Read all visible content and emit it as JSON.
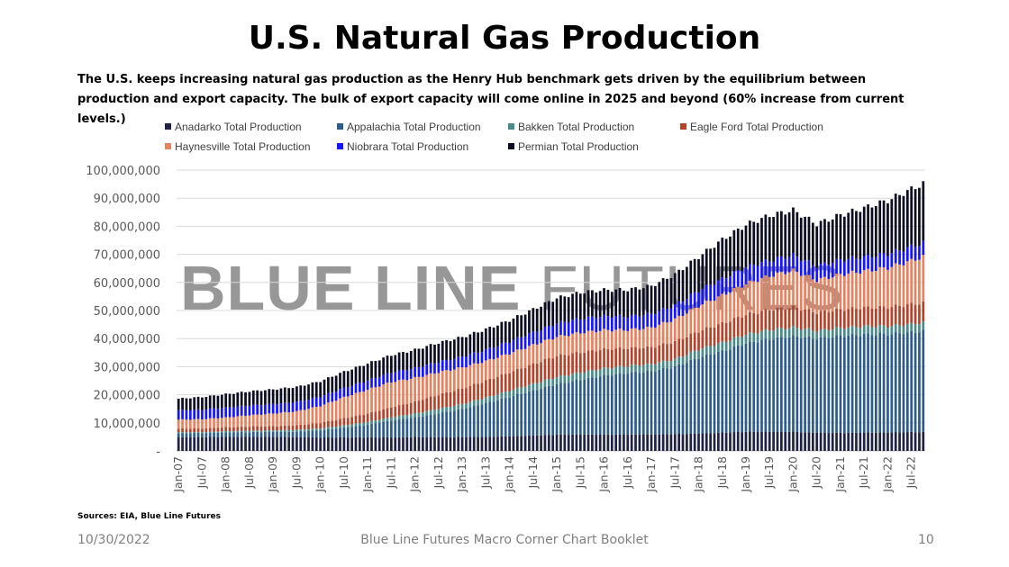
{
  "title": "U.S. Natural Gas Production",
  "subtitle": "The U.S. keeps increasing natural gas production as the Henry Hub benchmark gets driven by the equilibrium between production and export capacity. The bulk of export capacity will come online in 2025 and  beyond (60% increase from current levels.)",
  "sources": "Sources: EIA, Blue Line Futures",
  "footer": {
    "date": "10/30/2022",
    "center": "Blue Line Futures Macro Corner Chart Booklet",
    "page": "10"
  },
  "watermark": {
    "bold": "BLUE LINE",
    "light": "FUTURES"
  },
  "chart_data": {
    "type": "bar",
    "stacked": true,
    "title": "",
    "xlabel": "",
    "ylabel": "",
    "ylim": [
      0,
      100000000
    ],
    "yticks": [
      "-",
      "10,000,000",
      "20,000,000",
      "30,000,000",
      "40,000,000",
      "50,000,000",
      "60,000,000",
      "70,000,000",
      "80,000,000",
      "90,000,000",
      "100,000,000"
    ],
    "grid": true,
    "legend_position": "top",
    "x_start": "Jan-07",
    "x_end": "Oct-22",
    "frequency": "monthly",
    "anchor_note": "values in millions at Jan/Jul of each year plus Oct-22; monthly bars interpolated",
    "anchors": [
      "Jan-07",
      "Jul-07",
      "Jan-08",
      "Jul-08",
      "Jan-09",
      "Jul-09",
      "Jan-10",
      "Jul-10",
      "Jan-11",
      "Jul-11",
      "Jan-12",
      "Jul-12",
      "Jan-13",
      "Jul-13",
      "Jan-14",
      "Jul-14",
      "Jan-15",
      "Jul-15",
      "Jan-16",
      "Jul-16",
      "Jan-17",
      "Jul-17",
      "Jan-18",
      "Jul-18",
      "Jan-19",
      "Jul-19",
      "Jan-20",
      "Jul-20",
      "Jan-21",
      "Jul-21",
      "Jan-22",
      "Jul-22",
      "Oct-22"
    ],
    "xtick_labels": [
      "Jan-07",
      "Jul-07",
      "Jan-08",
      "Jul-08",
      "Jan-09",
      "Jul-09",
      "Jan-10",
      "Jul-10",
      "Jan-11",
      "Jul-11",
      "Jan-12",
      "Jul-12",
      "Jan-13",
      "Jul-13",
      "Jan-14",
      "Jul-14",
      "Jan-15",
      "Jul-15",
      "Jan-16",
      "Jul-16",
      "Jan-17",
      "Jul-17",
      "Jan-18",
      "Jul-18",
      "Jan-19",
      "Jul-19",
      "Jan-20",
      "Jul-20",
      "Jan-21",
      "Jul-21",
      "Jan-22",
      "Jul-22"
    ],
    "series": [
      {
        "name": "Anadarko Total Production",
        "color": "#1f2244",
        "values": [
          4.8,
          4.9,
          5.0,
          5.0,
          5.0,
          4.9,
          4.8,
          4.8,
          4.8,
          4.8,
          4.9,
          4.9,
          4.9,
          5.0,
          5.2,
          5.5,
          5.8,
          5.8,
          5.8,
          5.8,
          5.8,
          6.0,
          6.2,
          6.5,
          6.8,
          6.8,
          6.8,
          6.5,
          6.4,
          6.5,
          6.6,
          6.7,
          6.7
        ]
      },
      {
        "name": "Appalachia Total Production",
        "color": "#2e5c8a",
        "values": [
          1.5,
          1.5,
          1.6,
          1.7,
          1.8,
          2.0,
          2.5,
          3.5,
          4.5,
          6.0,
          7.0,
          8.5,
          10,
          12,
          14,
          16,
          18,
          19.5,
          21,
          22,
          22.5,
          24,
          27,
          29,
          31.5,
          33,
          34,
          33.5,
          34.5,
          35,
          35,
          35.5,
          36
        ]
      },
      {
        "name": "Bakken Total Production",
        "color": "#4a8a8a",
        "values": [
          0.3,
          0.3,
          0.4,
          0.5,
          0.5,
          0.6,
          0.7,
          0.8,
          1.0,
          1.2,
          1.4,
          1.6,
          1.8,
          2.0,
          2.2,
          2.4,
          2.5,
          2.6,
          2.6,
          2.5,
          2.6,
          2.7,
          2.9,
          3.1,
          3.2,
          3.3,
          3.2,
          2.8,
          2.9,
          2.9,
          2.8,
          3.0,
          3.0
        ]
      },
      {
        "name": "Eagle Ford Total Production",
        "color": "#b5432a",
        "values": [
          1.3,
          1.3,
          1.4,
          1.5,
          1.5,
          1.6,
          2.0,
          2.5,
          3.0,
          3.5,
          4.2,
          5.0,
          5.5,
          6.0,
          6.5,
          7.0,
          7.5,
          7.2,
          6.8,
          6.3,
          6.0,
          6.2,
          6.5,
          6.8,
          7.0,
          7.2,
          7.2,
          6.5,
          6.5,
          6.6,
          6.8,
          7.0,
          7.1
        ]
      },
      {
        "name": "Haynesville Total Production",
        "color": "#e8825e",
        "values": [
          3.2,
          3.3,
          3.5,
          4.0,
          4.5,
          5.0,
          6.0,
          7.5,
          8.5,
          9.0,
          8.5,
          8.0,
          7.5,
          7.0,
          6.8,
          6.8,
          6.8,
          7.0,
          6.8,
          6.5,
          7.0,
          8.0,
          9.0,
          10,
          11,
          12,
          13,
          11.5,
          12.5,
          13,
          14,
          15.5,
          16.4
        ]
      },
      {
        "name": "Niobrara Total Production",
        "color": "#1414ff",
        "values": [
          3.4,
          3.4,
          3.5,
          3.5,
          3.4,
          3.3,
          3.3,
          3.3,
          3.3,
          3.4,
          3.5,
          3.7,
          3.8,
          4.0,
          4.2,
          4.5,
          4.8,
          5.0,
          5.0,
          4.8,
          4.8,
          5.0,
          5.5,
          5.8,
          6.0,
          5.5,
          5.5,
          5.0,
          5.2,
          5.0,
          5.0,
          5.0,
          5.0
        ]
      },
      {
        "name": "Permian Total Production",
        "color": "#0b0b22",
        "values": [
          4.1,
          4.5,
          4.8,
          5.0,
          5.2,
          5.4,
          5.5,
          5.8,
          6.0,
          6.2,
          6.5,
          6.8,
          7.0,
          7.3,
          7.6,
          8.2,
          9.0,
          9.3,
          9.3,
          9.5,
          10,
          11,
          12,
          14,
          15,
          16,
          16,
          15,
          16,
          17.5,
          19,
          20.5,
          21
        ]
      }
    ]
  }
}
